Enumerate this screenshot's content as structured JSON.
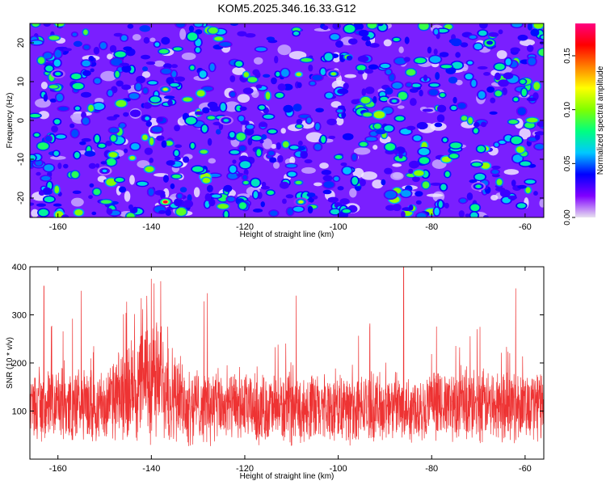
{
  "title": "KOM5.2025.346.16.33.G12",
  "chart_data": [
    {
      "type": "heatmap",
      "xlabel": "Height of straight line (km)",
      "ylabel": "Frequency (Hz)",
      "xlim": [
        -166,
        -56
      ],
      "ylim": [
        -25,
        25
      ],
      "xticks": [
        -160,
        -140,
        -120,
        -100,
        -80,
        -60
      ],
      "yticks": [
        -20,
        -10,
        0,
        10,
        20
      ],
      "colorbar": {
        "label": "Normalized spectral amplitude",
        "range": [
          0.0,
          0.18
        ],
        "ticks": [
          0.0,
          0.05,
          0.1,
          0.15
        ],
        "tick_labels": [
          "0.00",
          "0.05",
          "0.10",
          "0.15"
        ],
        "colormap": [
          "#e8e0f0",
          "#8000ff",
          "#0000ff",
          "#00c8ff",
          "#00ff80",
          "#80ff00",
          "#ffff00",
          "#ff8000",
          "#ff0000",
          "#ff0080"
        ]
      },
      "background_value": 0.02,
      "peaks": [
        {
          "x": -137,
          "y": -21,
          "v": 0.17
        },
        {
          "x": -137,
          "y": 8,
          "v": 0.11
        },
        {
          "x": -101,
          "y": 12,
          "v": 0.1
        },
        {
          "x": -108,
          "y": -21,
          "v": 0.11
        },
        {
          "x": -160,
          "y": 12,
          "v": 0.08
        },
        {
          "x": -88,
          "y": 5,
          "v": 0.07
        },
        {
          "x": -70,
          "y": -17,
          "v": 0.08
        },
        {
          "x": -150,
          "y": -13,
          "v": 0.06
        },
        {
          "x": -124,
          "y": 0,
          "v": 0.07
        }
      ]
    },
    {
      "type": "line",
      "xlabel": "Height of straight line (km)",
      "ylabel": "SNR (10 * v/v)",
      "xlim": [
        -166,
        -56
      ],
      "ylim": [
        0,
        400
      ],
      "xticks": [
        -160,
        -140,
        -120,
        -100,
        -80,
        -60
      ],
      "yticks": [
        100,
        200,
        300,
        400
      ],
      "color": "#ee3333",
      "envelope": [
        {
          "x": -166,
          "base": 110,
          "amp": 65
        },
        {
          "x": -150,
          "base": 110,
          "amp": 65
        },
        {
          "x": -145,
          "base": 140,
          "amp": 85
        },
        {
          "x": -140,
          "base": 170,
          "amp": 110
        },
        {
          "x": -137,
          "base": 160,
          "amp": 100
        },
        {
          "x": -134,
          "base": 115,
          "amp": 70
        },
        {
          "x": -120,
          "base": 105,
          "amp": 62
        },
        {
          "x": -100,
          "base": 105,
          "amp": 60
        },
        {
          "x": -80,
          "base": 110,
          "amp": 62
        },
        {
          "x": -56,
          "base": 115,
          "amp": 65
        }
      ],
      "spikes": [
        {
          "x": -163,
          "y": 360
        },
        {
          "x": -155,
          "y": 350
        },
        {
          "x": -140,
          "y": 375
        },
        {
          "x": -138,
          "y": 370
        },
        {
          "x": -128,
          "y": 345
        },
        {
          "x": -109,
          "y": 340
        },
        {
          "x": -86,
          "y": 400
        },
        {
          "x": -62,
          "y": 355
        }
      ]
    }
  ]
}
